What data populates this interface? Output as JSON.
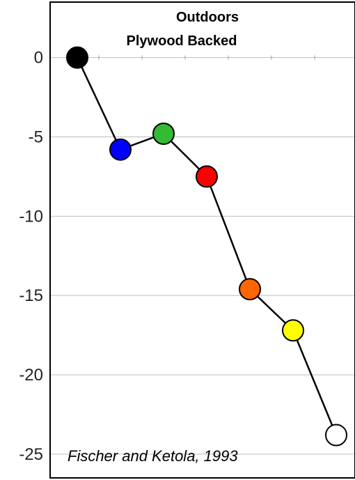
{
  "chart_data": {
    "type": "line",
    "title_lines": [
      "Outdoors",
      "Plywood  Backed"
    ],
    "annotation": "Fischer and Ketola, 1993",
    "xlabel": "",
    "ylabel": "",
    "ylim": [
      -26.5,
      3.5
    ],
    "yticks": [
      0,
      -5,
      -10,
      -15,
      -20,
      -25
    ],
    "ytick_labels": [
      "0",
      "-5",
      "-10",
      "-15",
      "-20",
      "-25"
    ],
    "grid": true,
    "series": [
      {
        "values": [
          0,
          -5.8,
          -4.8,
          -7.5,
          -14.6,
          -17.2,
          -23.8
        ],
        "colors": [
          "#000000",
          "#0000ff",
          "#33bb33",
          "#ff0000",
          "#ff6600",
          "#ffff00",
          "#ffffff"
        ]
      }
    ]
  }
}
